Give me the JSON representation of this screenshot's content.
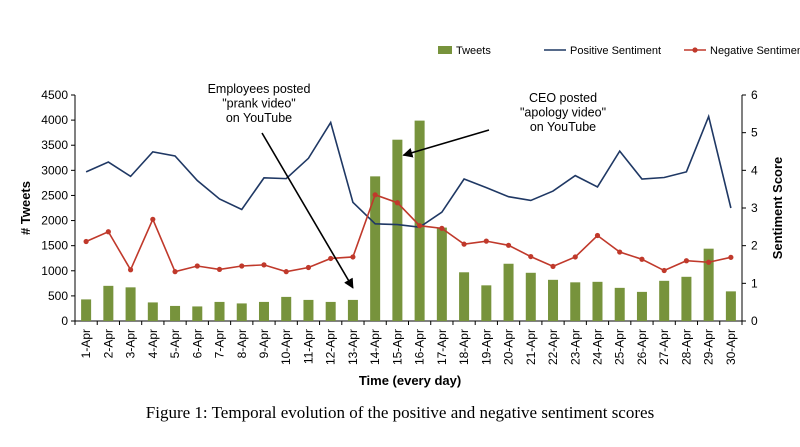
{
  "chart_data": {
    "type": "bar",
    "caption": "Figure 1: Temporal evolution of the positive and negative sentiment scores",
    "xlabel": "Time (every day)",
    "ylabel_left": "# Tweets",
    "ylabel_right": "Sentiment Score",
    "ylim_left": [
      0,
      4500
    ],
    "ylim_right": [
      0,
      6
    ],
    "yticks_left": [
      "0",
      "500",
      "1000",
      "1500",
      "2000",
      "2500",
      "3000",
      "3500",
      "4000",
      "4500"
    ],
    "yticks_right": [
      "0",
      "1",
      "2",
      "3",
      "4",
      "5",
      "6"
    ],
    "legend_position": "top-right",
    "categories": [
      "1-Apr",
      "2-Apr",
      "3-Apr",
      "4-Apr",
      "5-Apr",
      "6-Apr",
      "7-Apr",
      "8-Apr",
      "9-Apr",
      "10-Apr",
      "11-Apr",
      "12-Apr",
      "13-Apr",
      "14-Apr",
      "15-Apr",
      "16-Apr",
      "17-Apr",
      "18-Apr",
      "19-Apr",
      "20-Apr",
      "21-Apr",
      "22-Apr",
      "23-Apr",
      "24-Apr",
      "25-Apr",
      "26-Apr",
      "27-Apr",
      "28-Apr",
      "29-Apr",
      "30-Apr"
    ],
    "series": [
      {
        "name": "Tweets",
        "kind": "bar",
        "axis": "left",
        "color": "#77933c",
        "values": [
          430,
          700,
          670,
          370,
          300,
          290,
          380,
          350,
          380,
          480,
          420,
          380,
          420,
          2880,
          3610,
          3990,
          1860,
          970,
          710,
          1140,
          960,
          820,
          770,
          780,
          660,
          580,
          800,
          880,
          1440,
          590
        ]
      },
      {
        "name": "Positive Sentiment",
        "kind": "line",
        "axis": "right",
        "color": "#1f3864",
        "values": [
          3.96,
          4.22,
          3.84,
          4.49,
          4.38,
          3.73,
          3.24,
          2.96,
          3.8,
          3.78,
          4.32,
          5.27,
          3.15,
          2.58,
          2.56,
          2.49,
          2.89,
          3.77,
          3.54,
          3.3,
          3.2,
          3.45,
          3.86,
          3.56,
          4.51,
          3.77,
          3.81,
          3.96,
          5.43,
          3.0
        ]
      },
      {
        "name": "Negative Sentiment",
        "kind": "line",
        "axis": "right",
        "color": "#c0392b",
        "values": [
          2.11,
          2.37,
          1.36,
          2.7,
          1.31,
          1.46,
          1.37,
          1.46,
          1.49,
          1.31,
          1.42,
          1.66,
          1.7,
          3.35,
          3.14,
          2.53,
          2.46,
          2.04,
          2.12,
          2.01,
          1.71,
          1.45,
          1.7,
          2.27,
          1.83,
          1.64,
          1.34,
          1.6,
          1.56,
          1.69
        ]
      }
    ],
    "annotations": [
      {
        "lines": [
          "Employees posted",
          "\"prank video\"",
          "on YouTube"
        ],
        "target_category": "13-Apr",
        "target_value_left": 420
      },
      {
        "lines": [
          "CEO posted",
          "\"apology video\"",
          "on YouTube"
        ],
        "target_category": "15-Apr",
        "target_value_left": 3300
      }
    ]
  }
}
